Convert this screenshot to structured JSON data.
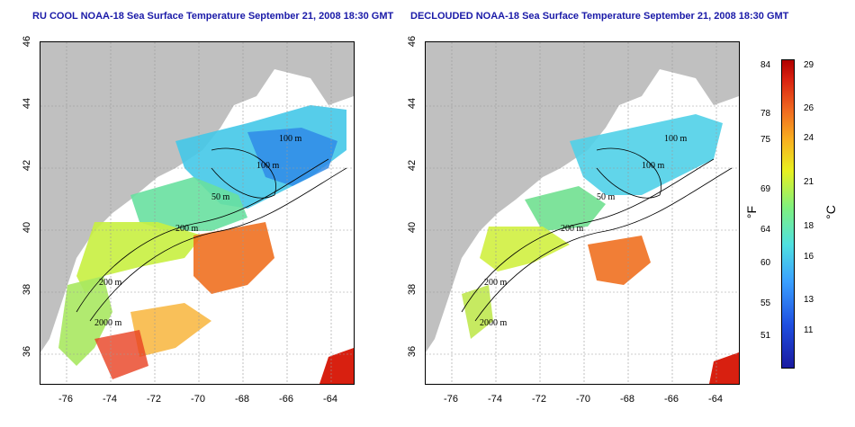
{
  "left_panel": {
    "title": "RU COOL NOAA-18 Sea Surface Temperature September 21, 2008 18:30 GMT"
  },
  "right_panel": {
    "title": "DECLOUDED NOAA-18 Sea Surface Temperature September 21, 2008 18:30 GMT"
  },
  "y_ticks": [
    "46",
    "44",
    "42",
    "40",
    "38",
    "36"
  ],
  "x_ticks": [
    "-76",
    "-74",
    "-72",
    "-70",
    "-68",
    "-66",
    "-64"
  ],
  "contour_labels": [
    "100 m",
    "100 m",
    "50 m",
    "200 m",
    "200 m",
    "2000 m"
  ],
  "colorbar": {
    "fahrenheit": [
      "84",
      "78",
      "75",
      "69",
      "64",
      "60",
      "55",
      "51"
    ],
    "celsius": [
      "29",
      "26",
      "24",
      "21",
      "18",
      "16",
      "13",
      "11"
    ],
    "unit_f": "°F",
    "unit_c": "°C"
  },
  "colors": {
    "land": "#c0c0c0",
    "title": "#1a1aa8"
  }
}
